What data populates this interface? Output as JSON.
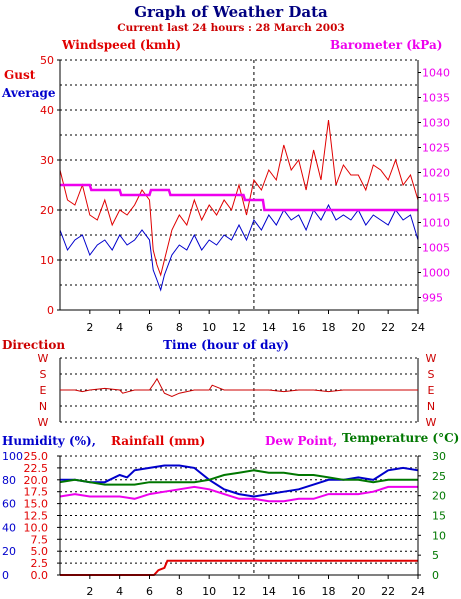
{
  "title": "Graph of Weather Data",
  "subtitle": "Current last 24 hours : 28 March 2003",
  "colors": {
    "gust": "#e00000",
    "average": "#0000cc",
    "barometer": "#ee00ee",
    "direction": "#cc0000",
    "humidity": "#0000cc",
    "rainfall": "#e00000",
    "dew_point": "#ee00ee",
    "temperature": "#007700",
    "title": "#000080",
    "subtitle": "#cc0000"
  },
  "chart_data": [
    {
      "type": "line",
      "labels": {
        "windspeed": "Windspeed (kmh)",
        "barometer": "Barometer (kPa)",
        "gust": "Gust",
        "average": "Average",
        "xlabel": "Time (hour of day)"
      },
      "x_ticks": [
        "2",
        "4",
        "6",
        "8",
        "10",
        "12",
        "14",
        "16",
        "18",
        "20",
        "22",
        "24"
      ],
      "y_left_ticks": [
        "0",
        "10",
        "20",
        "30",
        "40",
        "50"
      ],
      "y_right_ticks": [
        "995",
        "1000",
        "1005",
        "1010",
        "1015",
        "1020",
        "1025",
        "1030",
        "1035",
        "1040"
      ],
      "xlim": [
        0,
        24
      ],
      "ylim_left": [
        0,
        50
      ],
      "ylim_right": [
        992.5,
        1042.5
      ],
      "now_marker": 13,
      "series": [
        {
          "name": "Gust",
          "axis": "left",
          "x": [
            0,
            0.5,
            1,
            1.5,
            2,
            2.5,
            3,
            3.5,
            4,
            4.5,
            5,
            5.5,
            6,
            6.25,
            6.5,
            6.75,
            7,
            7.5,
            8,
            8.5,
            9,
            9.5,
            10,
            10.5,
            11,
            11.5,
            12,
            12.5,
            13,
            13.5,
            14,
            14.5,
            15,
            15.5,
            16,
            16.5,
            17,
            17.5,
            18,
            18.5,
            19,
            19.5,
            20,
            20.5,
            21,
            21.5,
            22,
            22.5,
            23,
            23.5,
            24
          ],
          "values": [
            28,
            22,
            21,
            25,
            19,
            18,
            22,
            17,
            20,
            19,
            21,
            24,
            22,
            12,
            9,
            7,
            10,
            16,
            19,
            17,
            22,
            18,
            21,
            19,
            22,
            20,
            25,
            19,
            26,
            24,
            28,
            26,
            33,
            28,
            30,
            24,
            32,
            26,
            38,
            25,
            29,
            27,
            27,
            24,
            29,
            28,
            26,
            30,
            25,
            27,
            22
          ]
        },
        {
          "name": "Average",
          "axis": "left",
          "x": [
            0,
            0.5,
            1,
            1.5,
            2,
            2.5,
            3,
            3.5,
            4,
            4.5,
            5,
            5.5,
            6,
            6.25,
            6.5,
            6.75,
            7,
            7.5,
            8,
            8.5,
            9,
            9.5,
            10,
            10.5,
            11,
            11.5,
            12,
            12.5,
            13,
            13.5,
            14,
            14.5,
            15,
            15.5,
            16,
            16.5,
            17,
            17.5,
            18,
            18.5,
            19,
            19.5,
            20,
            20.5,
            21,
            21.5,
            22,
            22.5,
            23,
            23.5,
            24
          ],
          "values": [
            16,
            12,
            14,
            15,
            11,
            13,
            14,
            12,
            15,
            13,
            14,
            16,
            14,
            8,
            6,
            4,
            7,
            11,
            13,
            12,
            15,
            12,
            14,
            13,
            15,
            14,
            17,
            14,
            18,
            16,
            19,
            17,
            20,
            18,
            19,
            16,
            20,
            18,
            21,
            18,
            19,
            18,
            20,
            17,
            19,
            18,
            17,
            20,
            18,
            19,
            14
          ]
        },
        {
          "name": "Barometer",
          "axis": "right",
          "x": [
            0,
            0.1,
            2,
            2.1,
            4,
            4.1,
            6,
            6.1,
            7.3,
            7.4,
            12.3,
            12.4,
            13.6,
            13.7,
            24
          ],
          "values": [
            1017.5,
            1017.5,
            1017.5,
            1016.5,
            1016.5,
            1015.5,
            1015.5,
            1016.5,
            1016.5,
            1015.5,
            1015.5,
            1014.5,
            1014.5,
            1012.5,
            1012.5
          ]
        }
      ]
    },
    {
      "type": "line",
      "labels": {
        "direction": "Direction",
        "compass": [
          "W",
          "S",
          "E",
          "N",
          "W"
        ]
      },
      "series": [
        {
          "name": "Direction",
          "axis": "left",
          "x": [
            0,
            1,
            1.5,
            2,
            3,
            4,
            4.2,
            5,
            6,
            6.3,
            6.5,
            7,
            7.5,
            8,
            9,
            10,
            10.2,
            11,
            12,
            13,
            14,
            15,
            16,
            17,
            18,
            19,
            20,
            21,
            22,
            23,
            24
          ],
          "values": [
            2,
            2,
            2.1,
            2,
            1.9,
            2,
            2.2,
            2,
            2,
            1.6,
            1.3,
            2.2,
            2.4,
            2.2,
            2,
            2,
            1.7,
            2,
            2,
            2,
            2,
            2.1,
            2,
            2,
            2.1,
            2,
            2,
            2,
            2,
            2,
            2
          ]
        }
      ]
    },
    {
      "type": "line",
      "labels": {
        "humidity": "Humidity (%),",
        "rainfall": "Rainfall (mm)",
        "dew_point": "Dew Point,",
        "temperature": "Temperature (°C)"
      },
      "x_ticks": [
        "2",
        "4",
        "6",
        "8",
        "10",
        "12",
        "14",
        "16",
        "18",
        "20",
        "22",
        "24"
      ],
      "y_humidity_ticks": [
        "0",
        "20",
        "40",
        "60",
        "80",
        "100"
      ],
      "y_rain_ticks": [
        "0.0",
        "2.5",
        "5.0",
        "7.5",
        "10.0",
        "12.5",
        "15.0",
        "17.5",
        "20.0",
        "22.5",
        "25.0"
      ],
      "y_temp_ticks": [
        "0",
        "5",
        "10",
        "15",
        "20",
        "25",
        "30"
      ],
      "ylim_rain": [
        0,
        25
      ],
      "series": [
        {
          "name": "Humidity",
          "axis": "rain",
          "x": [
            0,
            1,
            2,
            3,
            4,
            4.5,
            5,
            6,
            7,
            8,
            9,
            10,
            11,
            12,
            13,
            14,
            15,
            16,
            17,
            18,
            19,
            20,
            21,
            22,
            23,
            24
          ],
          "values": [
            20,
            20,
            19.5,
            19.5,
            21,
            20.5,
            22,
            22.5,
            23,
            23,
            22.5,
            20,
            18,
            17,
            16.5,
            17,
            17.5,
            18,
            19,
            20,
            20,
            20.5,
            20,
            22,
            22.5,
            22
          ]
        },
        {
          "name": "Temperature",
          "axis": "rain",
          "x": [
            0,
            1,
            2,
            3,
            4,
            5,
            6,
            7,
            8,
            9,
            10,
            11,
            12,
            13,
            14,
            15,
            16,
            17,
            18,
            19,
            20,
            21,
            22,
            23,
            24
          ],
          "values": [
            19.5,
            20,
            19.5,
            19,
            19,
            19,
            19.5,
            19.5,
            19.5,
            19.5,
            20,
            21,
            21.5,
            22,
            21.5,
            21.5,
            21,
            21,
            20.5,
            20,
            20,
            19.5,
            20,
            20,
            20
          ]
        },
        {
          "name": "Dew Point",
          "axis": "rain",
          "x": [
            0,
            1,
            2,
            3,
            4,
            5,
            6,
            7,
            8,
            9,
            10,
            11,
            12,
            13,
            14,
            15,
            16,
            17,
            18,
            19,
            20,
            21,
            22,
            23,
            24
          ],
          "values": [
            16.5,
            17,
            16.5,
            16.5,
            16.5,
            16,
            17,
            17.5,
            18,
            18.5,
            18,
            17,
            16,
            16,
            15.5,
            15.5,
            16,
            16,
            17,
            17,
            17,
            17.5,
            18.5,
            18.5,
            18.5
          ]
        },
        {
          "name": "Rainfall",
          "axis": "rain",
          "x": [
            0,
            6.3,
            6.6,
            7,
            7.2,
            24
          ],
          "values": [
            0,
            0,
            1,
            1.5,
            3,
            3
          ]
        }
      ]
    }
  ]
}
